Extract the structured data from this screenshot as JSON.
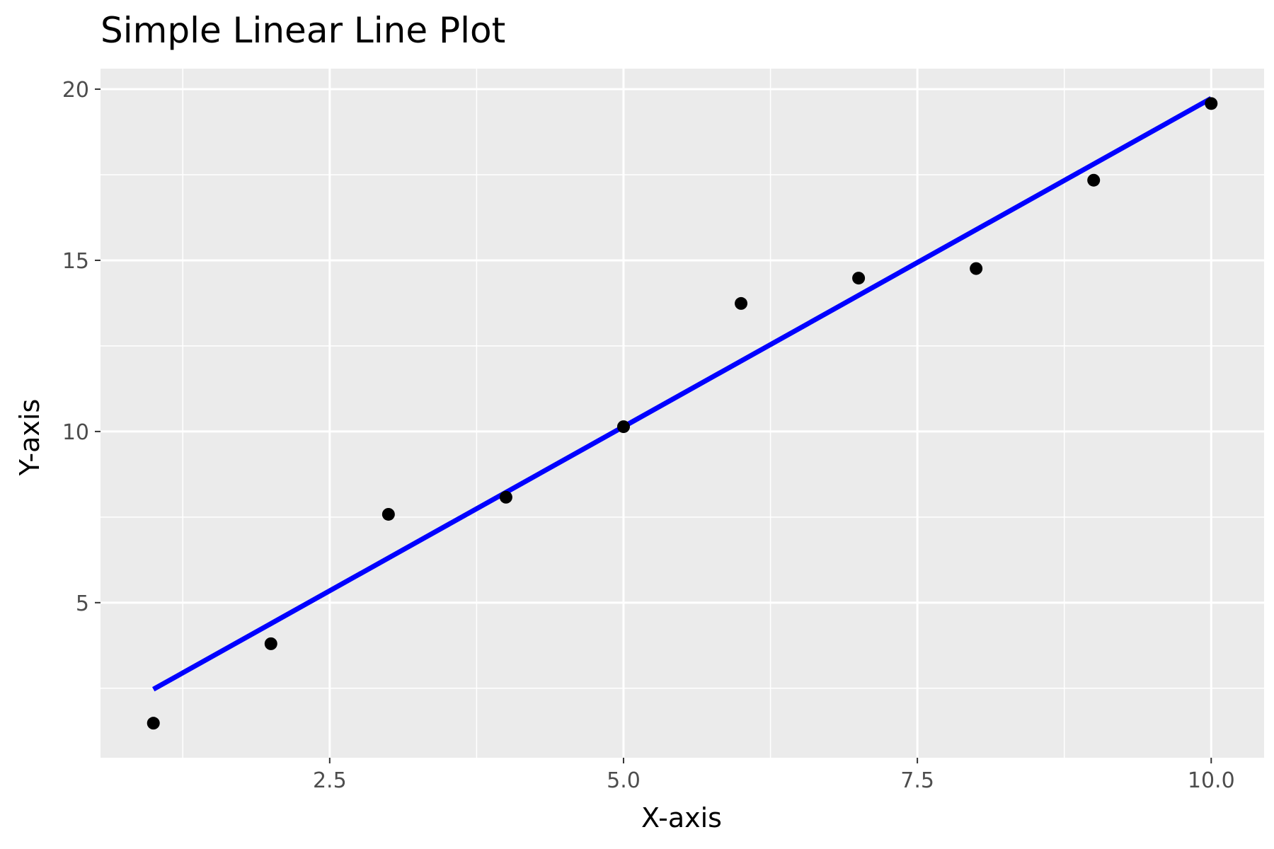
{
  "chart_data": {
    "type": "scatter",
    "title": "Simple Linear Line Plot",
    "xlabel": "X-axis",
    "ylabel": "Y-axis",
    "xlim": [
      0.55,
      10.45
    ],
    "ylim": [
      0.47,
      20.6
    ],
    "x_ticks": [
      2.5,
      5.0,
      7.5,
      10.0
    ],
    "x_tick_labels": [
      "2.5",
      "5.0",
      "7.5",
      "10.0"
    ],
    "x_minor_ticks": [
      1.25,
      3.75,
      6.25,
      8.75
    ],
    "y_ticks": [
      5,
      10,
      15,
      20
    ],
    "y_tick_labels": [
      "5",
      "10",
      "15",
      "20"
    ],
    "y_minor_ticks": [
      2.5,
      7.5,
      12.5,
      17.5
    ],
    "grid": true,
    "series": [
      {
        "type": "scatter",
        "x": [
          1,
          2,
          3,
          4,
          5,
          6,
          7,
          8,
          9,
          10
        ],
        "y": [
          1.48,
          3.8,
          7.58,
          8.08,
          10.14,
          13.74,
          14.48,
          14.76,
          17.34,
          19.58
        ]
      },
      {
        "type": "line",
        "x": [
          1,
          10
        ],
        "y": [
          2.47,
          19.73
        ]
      }
    ],
    "colors": {
      "panel": "#ebebeb",
      "grid": "#ffffff",
      "points": "#000000",
      "line": "#0000ff",
      "tick": "#333333"
    }
  }
}
